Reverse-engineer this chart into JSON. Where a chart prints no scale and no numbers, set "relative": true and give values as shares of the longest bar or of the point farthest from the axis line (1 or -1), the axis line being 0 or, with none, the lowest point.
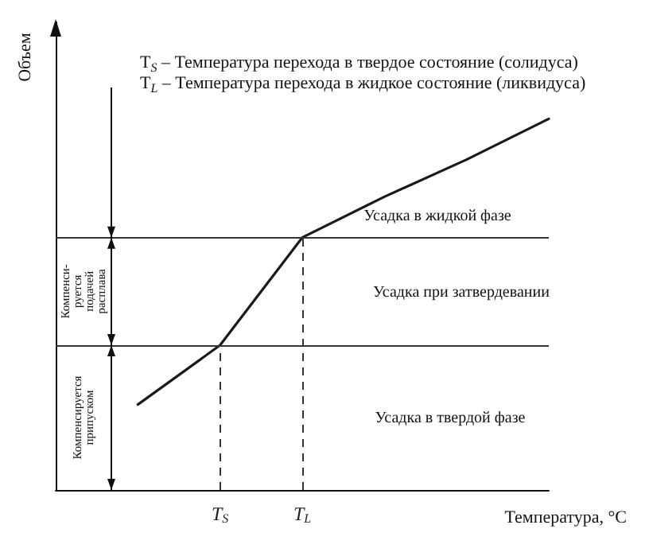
{
  "chart_data": {
    "type": "line",
    "relative": true,
    "xlabel": "Температура, °C",
    "ylabel": "Объем",
    "categories": [
      null,
      null,
      "T$_{S}$",
      "T$_{L}$",
      null,
      null,
      null
    ],
    "series": [
      {
        "color": "#1a1a1a",
        "values": [
          null,
          0.23,
          0.39,
          0.68,
          0.79,
          0.89,
          1
        ]
      }
    ],
    "marker": "none",
    "line_style": "solid",
    "grid": false,
    "ref_lines": [
      {
        "axis": "y",
        "value": 0.39,
        "color": "#333333",
        "line_style": "solid"
      },
      {
        "axis": "y",
        "value": 0.68,
        "color": "#333333",
        "line_style": "solid"
      },
      {
        "axis": "x",
        "value": "T$_{S}$",
        "color": "#333333",
        "line_style": "dashed"
      },
      {
        "axis": "x",
        "value": "T$_{L}$",
        "color": "#333333",
        "line_style": "dashed"
      }
    ],
    "annotations": [
      "T$_{S}$ – Температура перехода в твердое состояние (солидуса)",
      "T$_{L}$ – Температура перехода в жидкое состояние (ликвидуса)",
      "Усадка в жидкой фазе",
      "Усадка при затвердевании",
      "Усадка в твердой фазе",
      "Компенси-\nруется\nподачей\nрасплава",
      "Компенсируется\nприпуском"
    ]
  }
}
